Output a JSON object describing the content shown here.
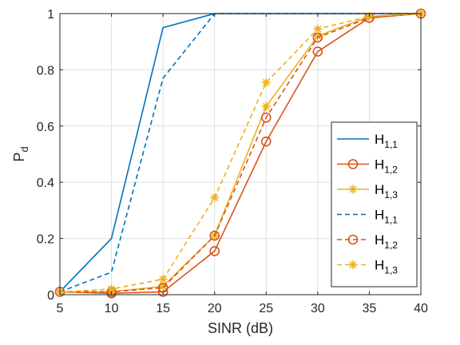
{
  "chart_data": {
    "type": "line",
    "xlabel": "SINR (dB)",
    "ylabel": "P",
    "ylabel_sub": "d",
    "xlim": [
      5,
      40
    ],
    "ylim": [
      0,
      1
    ],
    "xticks": [
      5,
      10,
      15,
      20,
      25,
      30,
      35,
      40
    ],
    "yticks": [
      0,
      0.2,
      0.4,
      0.6,
      0.8,
      1
    ],
    "ytick_labels": [
      "0",
      "0.2",
      "0.4",
      "0.6",
      "0.8",
      "1"
    ],
    "grid": true,
    "legend_position": "right",
    "x": [
      5,
      10,
      15,
      20,
      25,
      30,
      35,
      40
    ],
    "series": [
      {
        "name": "H",
        "sub": "1,1",
        "color": "#0072BD",
        "dash": "solid",
        "marker": "none",
        "values": [
          0.01,
          0.2,
          0.95,
          1.0,
          1.0,
          1.0,
          1.0,
          1.0
        ]
      },
      {
        "name": "H",
        "sub": "1,2",
        "color": "#D95319",
        "dash": "solid",
        "marker": "circle",
        "values": [
          0.01,
          0.005,
          0.01,
          0.155,
          0.545,
          0.865,
          0.985,
          1.0
        ]
      },
      {
        "name": "H",
        "sub": "1,3",
        "color": "#EDB120",
        "dash": "solid",
        "marker": "star",
        "values": [
          0.01,
          0.01,
          0.03,
          0.21,
          0.67,
          0.92,
          0.99,
          1.0
        ]
      },
      {
        "name": "H",
        "sub": "1,1",
        "color": "#0072BD",
        "dash": "dashed",
        "marker": "none",
        "values": [
          0.01,
          0.08,
          0.77,
          1.0,
          1.0,
          1.0,
          1.0,
          1.0
        ]
      },
      {
        "name": "H",
        "sub": "1,2",
        "color": "#D95319",
        "dash": "dashed",
        "marker": "circle",
        "values": [
          0.01,
          0.01,
          0.025,
          0.21,
          0.63,
          0.915,
          0.985,
          1.0
        ]
      },
      {
        "name": "H",
        "sub": "1,3",
        "color": "#EDB120",
        "dash": "dashed",
        "marker": "star",
        "values": [
          0.01,
          0.02,
          0.055,
          0.345,
          0.755,
          0.945,
          0.99,
          1.0
        ]
      }
    ]
  }
}
